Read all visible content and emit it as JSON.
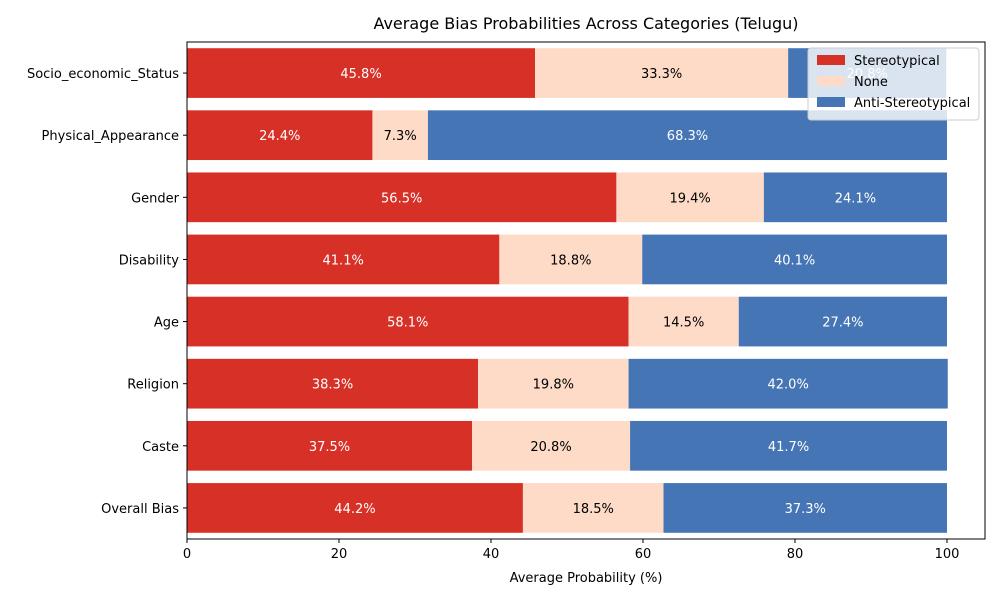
{
  "chart_data": {
    "type": "bar",
    "orientation": "horizontal",
    "stacked": true,
    "title": "Average Bias Probabilities Across Categories (Telugu)",
    "xlabel": "Average Probability (%)",
    "ylabel": "",
    "xlim": [
      0,
      105
    ],
    "xticks": [
      0,
      20,
      40,
      60,
      80,
      100
    ],
    "grid": false,
    "legend_position": "top-right",
    "categories": [
      "Socio_economic_Status",
      "Physical_Appearance",
      "Gender",
      "Disability",
      "Age",
      "Religion",
      "Caste",
      "Overall Bias"
    ],
    "series": [
      {
        "name": "Stereotypical",
        "color": "#d73027",
        "label_color": "#ffffff",
        "values": [
          45.8,
          24.4,
          56.5,
          41.1,
          58.1,
          38.3,
          37.5,
          44.2
        ]
      },
      {
        "name": "None",
        "color": "#fddbc7",
        "label_color": "#000000",
        "values": [
          33.3,
          7.3,
          19.4,
          18.8,
          14.5,
          19.8,
          20.8,
          18.5
        ]
      },
      {
        "name": "Anti-Stereotypical",
        "color": "#4575b4",
        "label_color": "#ffffff",
        "values": [
          20.8,
          68.3,
          24.1,
          40.1,
          27.4,
          42.0,
          41.7,
          37.3
        ]
      }
    ]
  }
}
